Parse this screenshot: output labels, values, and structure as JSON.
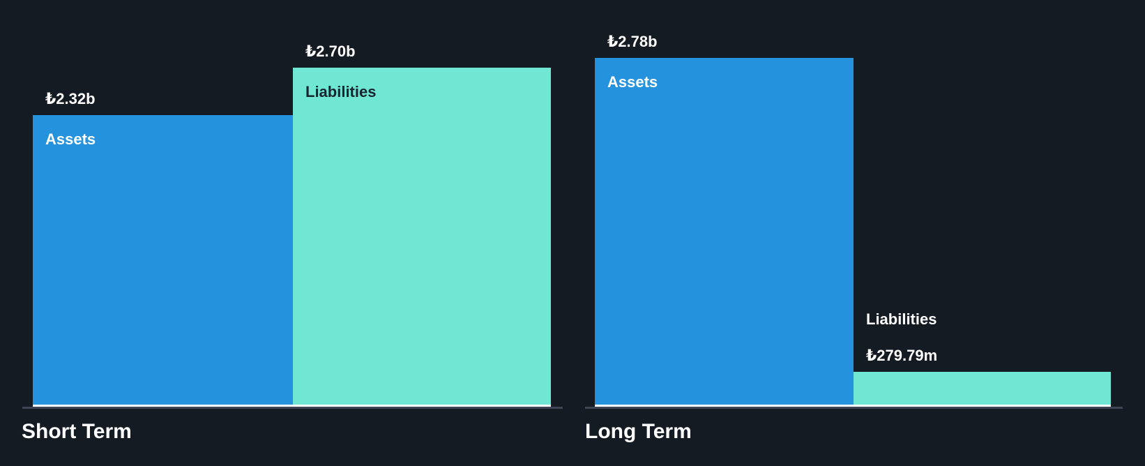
{
  "colors": {
    "background": "#151B23",
    "assets_bar": "#2592DE",
    "liabilities_bar": "#70E7D2",
    "axis_line": "#3E4654",
    "bar_baseline_highlight": "#FFFFFF",
    "label_text_light": "#FFFFFF",
    "label_text_dark": "#1A2330"
  },
  "chart_data": [
    {
      "type": "bar",
      "title": "Short Term",
      "categories": [
        "Assets",
        "Liabilities"
      ],
      "currency_symbol": "₺",
      "gridlines": false,
      "legend": false,
      "series": [
        {
          "name": "Assets",
          "label": "₺2.32b",
          "value_billions": 2.32,
          "color": "#2592DE",
          "name_color": "#FFFFFF"
        },
        {
          "name": "Liabilities",
          "label": "₺2.70b",
          "value_billions": 2.7,
          "color": "#70E7D2",
          "name_color": "#1A2330"
        }
      ]
    },
    {
      "type": "bar",
      "title": "Long Term",
      "categories": [
        "Assets",
        "Liabilities"
      ],
      "currency_symbol": "₺",
      "gridlines": false,
      "legend": false,
      "series": [
        {
          "name": "Assets",
          "label": "₺2.78b",
          "value_billions": 2.78,
          "color": "#2592DE",
          "name_color": "#FFFFFF"
        },
        {
          "name": "Liabilities",
          "label": "₺279.79m",
          "value_billions": 0.27979,
          "color": "#70E7D2",
          "name_color": "#FFFFFF"
        }
      ]
    }
  ]
}
